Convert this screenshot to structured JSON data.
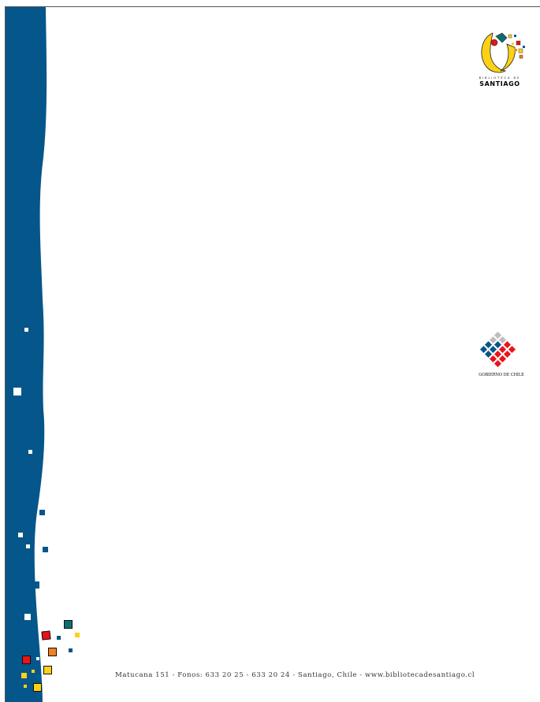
{
  "letterhead": {
    "brand_blue": "#05568a",
    "accent_colors": [
      "#e8141b",
      "#f47f20",
      "#fcd116",
      "#0d6d73",
      "#ffffff"
    ]
  },
  "logos": {
    "biblioteca": {
      "icon": "biblioteca-santiago-logo",
      "small_text": "BIBLIOTECA DE",
      "big_text": "SANTIAGO"
    },
    "gobierno": {
      "icon": "gobierno-de-chile-logo",
      "label": "GOBIERNO DE CHILE"
    }
  },
  "footer": {
    "address_line": "Matucana 151 - Fonos: 633 20  25 - 633 20 24 - Santiago, Chile - www.bibliotecadesantiago.cl"
  }
}
